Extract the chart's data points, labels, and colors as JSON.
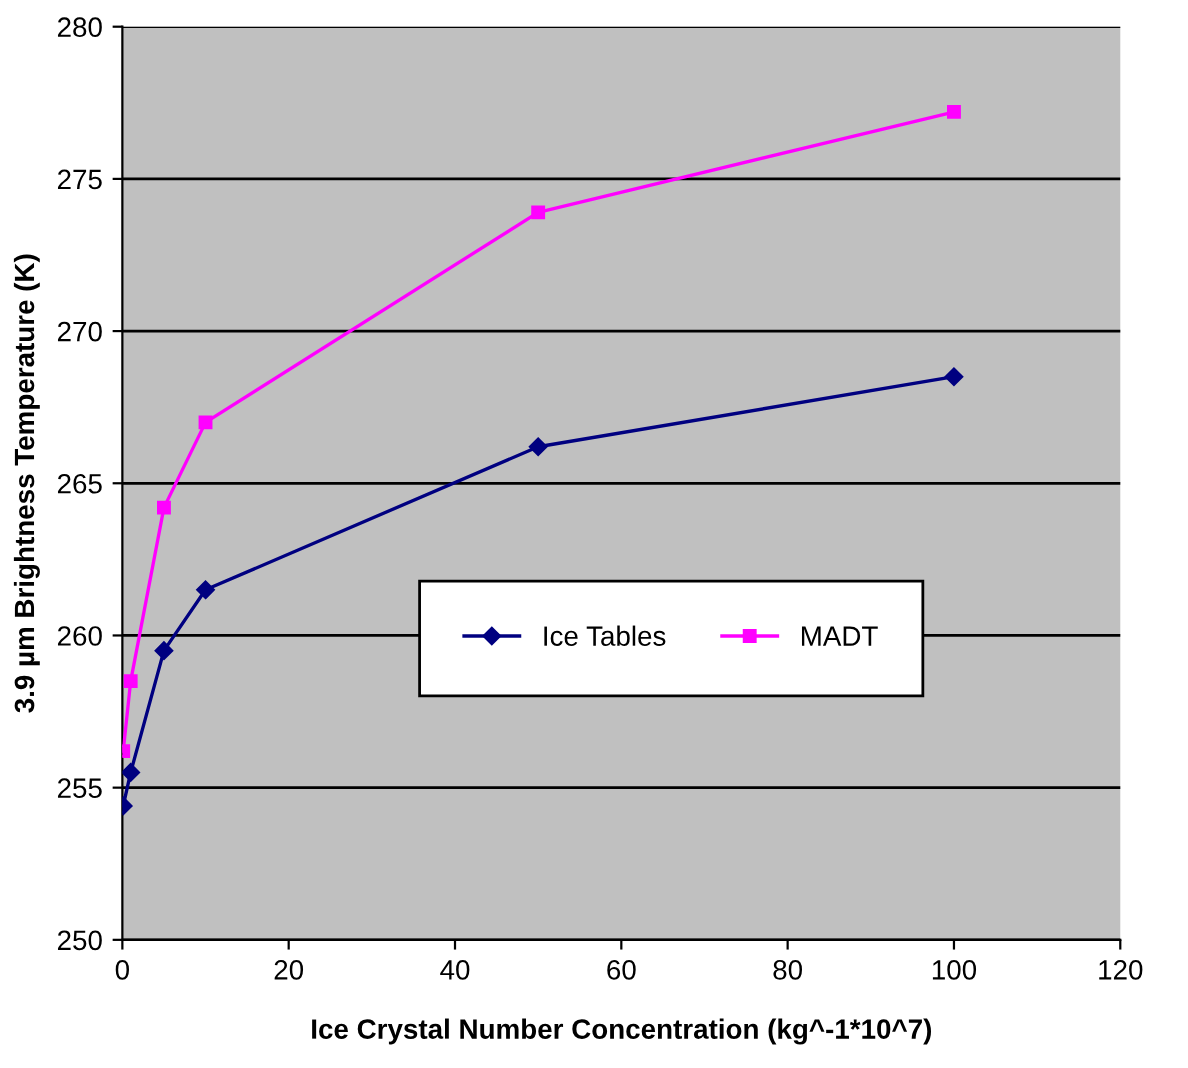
{
  "chart_data": {
    "type": "line",
    "xlabel": "Ice Crystal Number Concentration (kg^-1*10^7)",
    "ylabel": "3.9 µm Brightness Temperature (K)",
    "series": [
      {
        "name": "Ice Tables",
        "color": "#000080",
        "marker": "diamond",
        "x": [
          0.1,
          1,
          5,
          10,
          50,
          100
        ],
        "values": [
          254.4,
          255.5,
          259.5,
          261.5,
          266.2,
          268.5
        ]
      },
      {
        "name": "MADT",
        "color": "#ff00ff",
        "marker": "square",
        "x": [
          0.1,
          1,
          5,
          10,
          50,
          100
        ],
        "values": [
          256.2,
          258.5,
          264.2,
          267.0,
          273.9,
          277.2
        ]
      }
    ],
    "xlim": [
      0,
      120
    ],
    "xticks": [
      0,
      20,
      40,
      60,
      80,
      100,
      120
    ],
    "ylim": [
      250,
      280
    ],
    "yticks": [
      250,
      255,
      260,
      265,
      270,
      275,
      280
    ],
    "grid": "y",
    "legend": "center",
    "line_style": "solid"
  }
}
